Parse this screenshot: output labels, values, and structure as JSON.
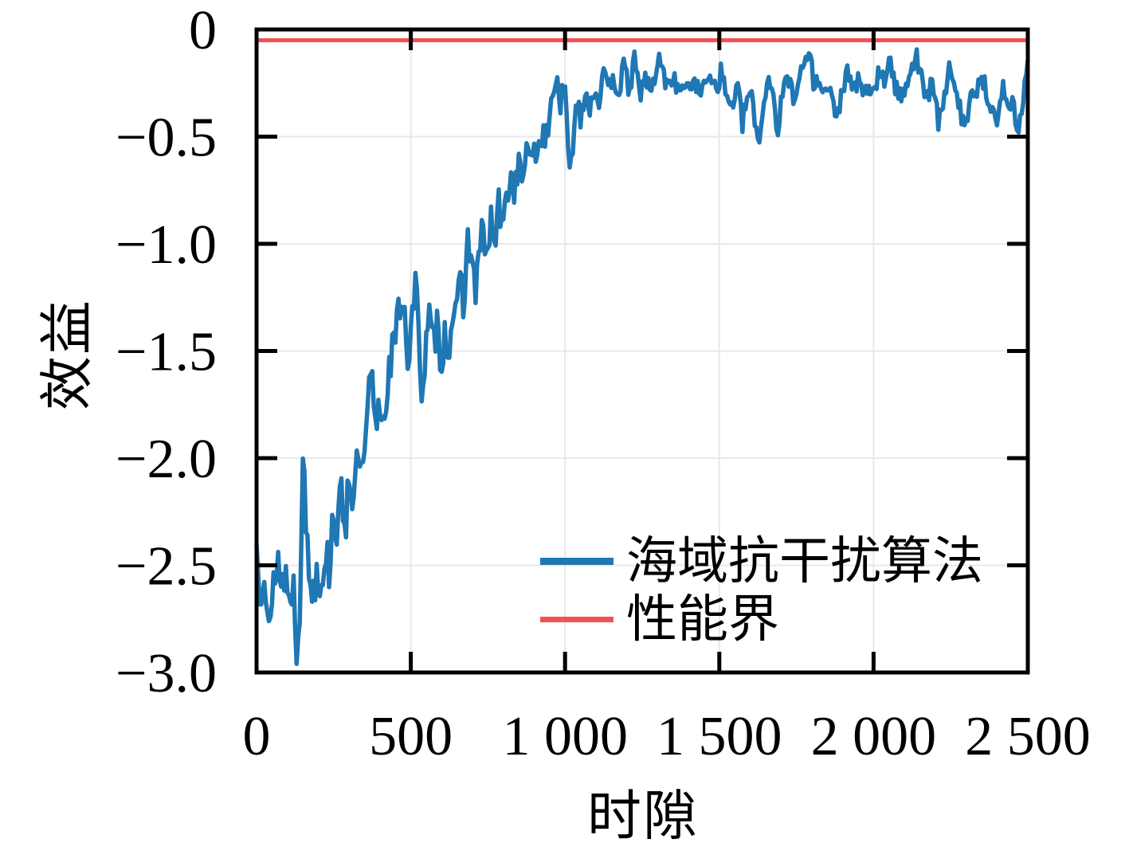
{
  "chart_data": {
    "type": "line",
    "title": "",
    "xlabel": "时隙",
    "ylabel": "效益",
    "xlim": [
      0,
      2500
    ],
    "ylim": [
      -3.0,
      0
    ],
    "grid": true,
    "legend_position": "lower right",
    "frame_color": "#000000",
    "grid_color": "#e8e8e8",
    "x_ticks": [
      {
        "value": 0,
        "label": "0"
      },
      {
        "value": 500,
        "label": "500"
      },
      {
        "value": 1000,
        "label": "1 000"
      },
      {
        "value": 1500,
        "label": "1 500"
      },
      {
        "value": 2000,
        "label": "2 000"
      },
      {
        "value": 2500,
        "label": "2 500"
      }
    ],
    "y_ticks": [
      {
        "value": 0,
        "label": "0"
      },
      {
        "value": -0.5,
        "label": "−0.5"
      },
      {
        "value": -1.0,
        "label": "−1.0"
      },
      {
        "value": -1.5,
        "label": "−1.5"
      },
      {
        "value": -2.0,
        "label": "−2.0"
      },
      {
        "value": -2.5,
        "label": "−2.5"
      },
      {
        "value": -3.0,
        "label": "−3.0"
      }
    ],
    "series": [
      {
        "name": "海域抗干扰算法",
        "kind": "noisy-line",
        "color": "#1f77b4",
        "line_width": 5.5,
        "trend_points": [
          [
            0,
            -2.42
          ],
          [
            12,
            -2.6
          ],
          [
            25,
            -2.45
          ],
          [
            38,
            -2.75
          ],
          [
            45,
            -2.84
          ],
          [
            55,
            -2.6
          ],
          [
            68,
            -2.42
          ],
          [
            80,
            -2.62
          ],
          [
            92,
            -2.5
          ],
          [
            105,
            -2.68
          ],
          [
            118,
            -2.55
          ],
          [
            130,
            -2.92
          ],
          [
            140,
            -2.65
          ],
          [
            150,
            -1.95
          ],
          [
            158,
            -2.28
          ],
          [
            170,
            -2.5
          ],
          [
            182,
            -2.65
          ],
          [
            195,
            -2.5
          ],
          [
            208,
            -2.6
          ],
          [
            222,
            -2.42
          ],
          [
            235,
            -2.52
          ],
          [
            250,
            -2.22
          ],
          [
            262,
            -2.38
          ],
          [
            275,
            -2.15
          ],
          [
            288,
            -2.32
          ],
          [
            300,
            -2.05
          ],
          [
            315,
            -2.22
          ],
          [
            330,
            -1.98
          ],
          [
            345,
            -2.1
          ],
          [
            360,
            -1.8
          ],
          [
            372,
            -1.58
          ],
          [
            385,
            -1.88
          ],
          [
            398,
            -1.72
          ],
          [
            412,
            -1.85
          ],
          [
            425,
            -1.62
          ],
          [
            438,
            -1.52
          ],
          [
            452,
            -1.42
          ],
          [
            465,
            -1.28
          ],
          [
            478,
            -1.24
          ],
          [
            490,
            -1.56
          ],
          [
            502,
            -1.38
          ],
          [
            515,
            -1.2
          ],
          [
            528,
            -1.45
          ],
          [
            537,
            -1.72
          ],
          [
            548,
            -1.5
          ],
          [
            560,
            -1.35
          ],
          [
            572,
            -1.48
          ],
          [
            585,
            -1.38
          ],
          [
            598,
            -1.55
          ],
          [
            610,
            -1.42
          ],
          [
            622,
            -1.52
          ],
          [
            635,
            -1.3
          ],
          [
            648,
            -1.38
          ],
          [
            660,
            -1.15
          ],
          [
            672,
            -1.28
          ],
          [
            685,
            -0.98
          ],
          [
            698,
            -1.08
          ],
          [
            710,
            -1.22
          ],
          [
            722,
            -1.05
          ],
          [
            735,
            -0.92
          ],
          [
            748,
            -1.1
          ],
          [
            760,
            -0.88
          ],
          [
            772,
            -1.02
          ],
          [
            785,
            -0.82
          ],
          [
            798,
            -0.95
          ],
          [
            810,
            -0.78
          ],
          [
            822,
            -0.68
          ],
          [
            835,
            -0.75
          ],
          [
            848,
            -0.62
          ],
          [
            860,
            -0.72
          ],
          [
            872,
            -0.55
          ],
          [
            885,
            -0.65
          ],
          [
            898,
            -0.52
          ],
          [
            910,
            -0.6
          ],
          [
            922,
            -0.46
          ],
          [
            935,
            -0.55
          ],
          [
            948,
            -0.42
          ],
          [
            960,
            -0.3
          ],
          [
            972,
            -0.2
          ],
          [
            985,
            -0.35
          ],
          [
            998,
            -0.28
          ],
          [
            1008,
            -0.48
          ],
          [
            1016,
            -0.72
          ],
          [
            1026,
            -0.5
          ],
          [
            1038,
            -0.32
          ],
          [
            1050,
            -0.4
          ],
          [
            1065,
            -0.28
          ],
          [
            1080,
            -0.36
          ],
          [
            1095,
            -0.28
          ],
          [
            1110,
            -0.32
          ],
          [
            1125,
            -0.22
          ],
          [
            1140,
            -0.3
          ],
          [
            1155,
            -0.2
          ],
          [
            1172,
            -0.3
          ],
          [
            1190,
            -0.18
          ],
          [
            1208,
            -0.28
          ],
          [
            1225,
            -0.15
          ],
          [
            1242,
            -0.3
          ],
          [
            1260,
            -0.22
          ],
          [
            1278,
            -0.3
          ],
          [
            1295,
            -0.2
          ],
          [
            1312,
            -0.12
          ],
          [
            1330,
            -0.28
          ],
          [
            1348,
            -0.2
          ],
          [
            1365,
            -0.3
          ],
          [
            1382,
            -0.24
          ],
          [
            1400,
            -0.3
          ],
          [
            1418,
            -0.2
          ],
          [
            1435,
            -0.32
          ],
          [
            1452,
            -0.26
          ],
          [
            1470,
            -0.18
          ],
          [
            1488,
            -0.28
          ],
          [
            1505,
            -0.2
          ],
          [
            1522,
            -0.3
          ],
          [
            1540,
            -0.36
          ],
          [
            1558,
            -0.26
          ],
          [
            1575,
            -0.44
          ],
          [
            1592,
            -0.3
          ],
          [
            1610,
            -0.35
          ],
          [
            1628,
            -0.55
          ],
          [
            1642,
            -0.35
          ],
          [
            1658,
            -0.22
          ],
          [
            1675,
            -0.3
          ],
          [
            1690,
            -0.48
          ],
          [
            1705,
            -0.3
          ],
          [
            1722,
            -0.22
          ],
          [
            1740,
            -0.3
          ],
          [
            1758,
            -0.24
          ],
          [
            1775,
            -0.16
          ],
          [
            1792,
            -0.1
          ],
          [
            1810,
            -0.28
          ],
          [
            1828,
            -0.22
          ],
          [
            1845,
            -0.3
          ],
          [
            1862,
            -0.26
          ],
          [
            1878,
            -0.46
          ],
          [
            1895,
            -0.3
          ],
          [
            1912,
            -0.2
          ],
          [
            1930,
            -0.28
          ],
          [
            1948,
            -0.24
          ],
          [
            1965,
            -0.32
          ],
          [
            1982,
            -0.26
          ],
          [
            2000,
            -0.3
          ],
          [
            2018,
            -0.2
          ],
          [
            2035,
            -0.26
          ],
          [
            2052,
            -0.1
          ],
          [
            2070,
            -0.28
          ],
          [
            2088,
            -0.32
          ],
          [
            2105,
            -0.24
          ],
          [
            2122,
            -0.18
          ],
          [
            2140,
            -0.12
          ],
          [
            2158,
            -0.26
          ],
          [
            2175,
            -0.32
          ],
          [
            2192,
            -0.24
          ],
          [
            2210,
            -0.45
          ],
          [
            2228,
            -0.3
          ],
          [
            2245,
            -0.2
          ],
          [
            2262,
            -0.28
          ],
          [
            2280,
            -0.36
          ],
          [
            2298,
            -0.48
          ],
          [
            2315,
            -0.26
          ],
          [
            2332,
            -0.3
          ],
          [
            2350,
            -0.22
          ],
          [
            2368,
            -0.3
          ],
          [
            2385,
            -0.35
          ],
          [
            2402,
            -0.45
          ],
          [
            2420,
            -0.28
          ],
          [
            2438,
            -0.32
          ],
          [
            2455,
            -0.38
          ],
          [
            2472,
            -0.46
          ],
          [
            2488,
            -0.3
          ],
          [
            2500,
            -0.13
          ]
        ],
        "noise_envelope": [
          [
            0,
            0.13
          ],
          [
            145,
            0.13
          ],
          [
            160,
            0.11
          ],
          [
            380,
            0.1
          ],
          [
            900,
            0.075
          ],
          [
            1050,
            0.06
          ],
          [
            1150,
            0.05
          ],
          [
            2500,
            0.05
          ]
        ],
        "noise_step": 5,
        "noise_seed": 13,
        "clamp": [
          -2.96,
          -0.075
        ]
      },
      {
        "name": "性能界",
        "kind": "hline",
        "color": "#f25252",
        "line_width": 5,
        "value": -0.05
      }
    ]
  },
  "legend": {
    "items": [
      {
        "label": "海域抗干扰算法",
        "color": "#1f77b4"
      },
      {
        "label": "性能界",
        "color": "#f25252"
      }
    ]
  }
}
